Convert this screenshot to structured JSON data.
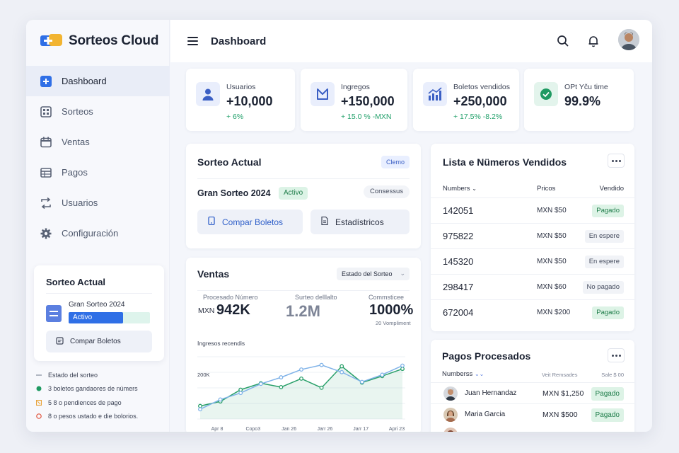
{
  "app": {
    "name": "Sorteos Cloud"
  },
  "sidebar": {
    "items": [
      {
        "label": "Dashboard",
        "icon": "plus-square-icon",
        "active": true
      },
      {
        "label": "Sorteos",
        "icon": "grid-icon"
      },
      {
        "label": "Ventas",
        "icon": "calendar-icon"
      },
      {
        "label": "Pagos",
        "icon": "table-icon"
      },
      {
        "label": "Usuarios",
        "icon": "swap-icon"
      },
      {
        "label": "Configuración",
        "icon": "gear-icon"
      }
    ],
    "card": {
      "title": "Sorteo Actual",
      "raffle_name": "Gran Sorteo 2024",
      "status": "Activo",
      "progress": 0.67,
      "button": "Compar Boletos"
    },
    "legend": [
      {
        "text": "Estado del sorteo",
        "mark": "line",
        "color": "#9aa1b0"
      },
      {
        "text": "3 boletos gandaores de númers",
        "mark": "dot",
        "color": "#1f9a62"
      },
      {
        "text": "5 8 o pendiences de pago",
        "mark": "box",
        "color": "#e8a33a"
      },
      {
        "text": "8 o pesos ustado e die bolorios.",
        "mark": "ring",
        "color": "#e0543d"
      }
    ]
  },
  "header": {
    "title": "Dashboard",
    "icons": [
      "search-icon",
      "bell-icon"
    ]
  },
  "stats": [
    {
      "label": "Usuarios",
      "value": "+10,000",
      "change": "+ 6%",
      "icon": "user-icon"
    },
    {
      "label": "Ingregos",
      "value": "+150,000",
      "change": "+ 15.0 %   -MXN",
      "icon": "flag-icon"
    },
    {
      "label": "Boletos vendidos",
      "value": "+250,000",
      "change": "+ 17.5%   -8.2%",
      "icon": "bar-chart-icon"
    },
    {
      "label": "OPt Yču time",
      "value": "99.9%",
      "change": "",
      "icon": "check-circle-icon"
    }
  ],
  "sorteo_actual": {
    "title": "Sorteo Actual",
    "badge": "Clemo",
    "raffle_name": "Gran Sorteo 2024",
    "status": "Activo",
    "tag": "Consessus",
    "buttons": [
      "Compar Boletos",
      "Estadístricos"
    ]
  },
  "lista": {
    "title": "Lista e Nümeros Vendidos",
    "headers": [
      "Numbers",
      "Pricos",
      "Vendido"
    ],
    "rows": [
      {
        "number": "142051",
        "price": "MXN $50",
        "status": "Pagado",
        "paid": true
      },
      {
        "number": "975822",
        "price": "MXN $50",
        "status": "En espere",
        "paid": false
      },
      {
        "number": "145320",
        "price": "MXN $50",
        "status": "En espere",
        "paid": false
      },
      {
        "number": "298417",
        "price": "MXN $60",
        "status": "No pagado",
        "paid": false
      },
      {
        "number": "672004",
        "price": "MXN $200",
        "status": "Pagado",
        "paid": true
      }
    ]
  },
  "ventas": {
    "title": "Ventas",
    "dropdown": "Estado del Sorteo",
    "metrics": [
      {
        "label": "Procesado Número",
        "prefix": "MXN",
        "value": "942K",
        "sub": ""
      },
      {
        "label": "Surteo delllalto",
        "prefix": "",
        "value": "1.2M",
        "sub": ""
      },
      {
        "label": "Commsticee",
        "prefix": "",
        "value": "1000%",
        "sub": "20 Vompliment"
      }
    ],
    "chart_label": "Ingresos recendis",
    "y_tick": "200K"
  },
  "chart_data": {
    "type": "line",
    "title": "",
    "xlabel": "",
    "ylabel": "",
    "x_tick_labels": [
      "Apr 8",
      "Copo3",
      "Jan 26",
      "Jarr 26",
      "Jarr 17",
      "Apri 23"
    ],
    "ylim": [
      0,
      100
    ],
    "series": [
      {
        "color": "#2aa06a",
        "values": [
          20,
          27,
          45,
          55,
          49,
          62,
          48,
          81,
          56,
          66,
          77
        ]
      },
      {
        "color": "#7fb2e8",
        "values": [
          15,
          30,
          40,
          54,
          64,
          76,
          83,
          72,
          57,
          68,
          82
        ]
      }
    ]
  },
  "pagos": {
    "title": "Pagos Procesados",
    "headers": [
      "Numberss",
      "Veit Remsades",
      "Sale $ 00"
    ],
    "rows": [
      {
        "name": "Juan Hernandaz",
        "amount": "MXN $1,250",
        "status": "Pagado"
      },
      {
        "name": "Maria Garcia",
        "amount": "MXN $500",
        "status": "Pagado"
      }
    ]
  }
}
